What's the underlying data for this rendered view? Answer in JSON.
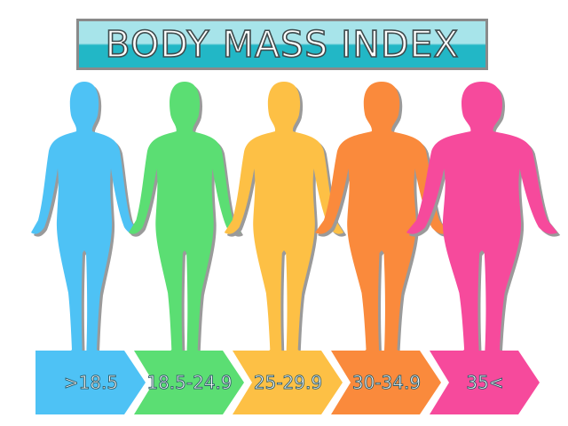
{
  "title": "BODY MASS INDEX",
  "categories": [
    {
      "label": ">18.5",
      "color": "#4ec2f5"
    },
    {
      "label": "18.5-24.9",
      "color": "#5bde73"
    },
    {
      "label": "25-29.9",
      "color": "#fdc045"
    },
    {
      "label": "30-34.9",
      "color": "#fa8a3c"
    },
    {
      "label": "35<",
      "color": "#f64a9c"
    }
  ]
}
